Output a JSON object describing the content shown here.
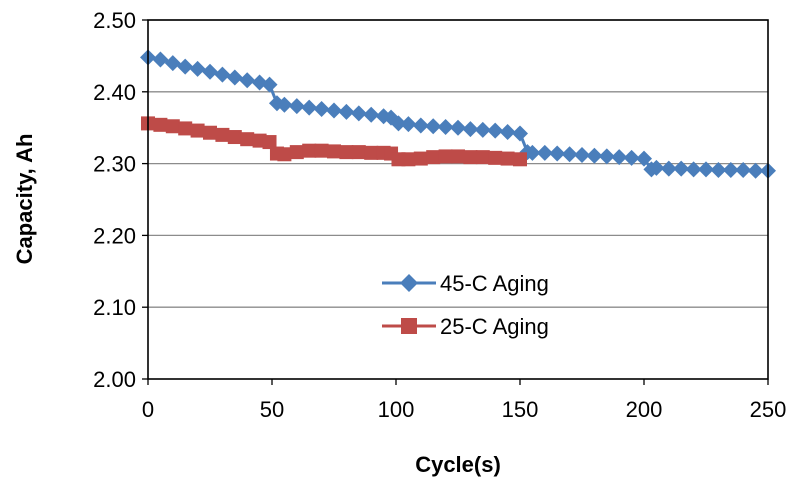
{
  "chart_data": {
    "type": "scatter",
    "title": "",
    "xlabel": "Cycle(s)",
    "ylabel": "Capacity, Ah",
    "xlim": [
      0,
      250
    ],
    "ylim": [
      2.0,
      2.5
    ],
    "xticks": [
      "0",
      "50",
      "100",
      "150",
      "200",
      "250"
    ],
    "yticks": [
      "2.00",
      "2.10",
      "2.20",
      "2.30",
      "2.40",
      "2.50"
    ],
    "grid": "horizontal",
    "legend_position": "center-right",
    "series": [
      {
        "name": "45-C Aging",
        "color": "#4a7ebb",
        "marker": "diamond",
        "x": [
          0,
          5,
          10,
          15,
          20,
          25,
          30,
          35,
          40,
          45,
          49,
          52,
          55,
          60,
          65,
          70,
          75,
          80,
          85,
          90,
          95,
          98,
          101,
          105,
          110,
          115,
          120,
          125,
          130,
          135,
          140,
          145,
          150,
          153,
          155,
          160,
          165,
          170,
          175,
          180,
          185,
          190,
          195,
          200,
          203,
          205,
          210,
          215,
          220,
          225,
          230,
          235,
          240,
          245,
          250
        ],
        "values": [
          2.448,
          2.445,
          2.44,
          2.435,
          2.432,
          2.428,
          2.424,
          2.42,
          2.416,
          2.413,
          2.41,
          2.384,
          2.382,
          2.38,
          2.378,
          2.376,
          2.374,
          2.372,
          2.37,
          2.368,
          2.366,
          2.364,
          2.356,
          2.355,
          2.353,
          2.352,
          2.351,
          2.35,
          2.348,
          2.347,
          2.346,
          2.344,
          2.342,
          2.316,
          2.315,
          2.315,
          2.314,
          2.313,
          2.312,
          2.311,
          2.31,
          2.309,
          2.308,
          2.307,
          2.292,
          2.294,
          2.293,
          2.293,
          2.292,
          2.292,
          2.291,
          2.291,
          2.291,
          2.29,
          2.29
        ]
      },
      {
        "name": "25-C Aging",
        "color": "#be4b48",
        "marker": "square",
        "x": [
          0,
          5,
          10,
          15,
          20,
          25,
          30,
          35,
          40,
          45,
          49,
          52,
          55,
          60,
          65,
          70,
          75,
          80,
          85,
          90,
          95,
          98,
          101,
          105,
          110,
          115,
          120,
          125,
          130,
          135,
          140,
          145,
          150
        ],
        "values": [
          2.356,
          2.354,
          2.352,
          2.349,
          2.346,
          2.343,
          2.34,
          2.337,
          2.334,
          2.332,
          2.33,
          2.314,
          2.313,
          2.316,
          2.318,
          2.318,
          2.317,
          2.316,
          2.316,
          2.315,
          2.315,
          2.314,
          2.306,
          2.306,
          2.307,
          2.309,
          2.31,
          2.31,
          2.309,
          2.309,
          2.308,
          2.307,
          2.306
        ]
      }
    ]
  }
}
